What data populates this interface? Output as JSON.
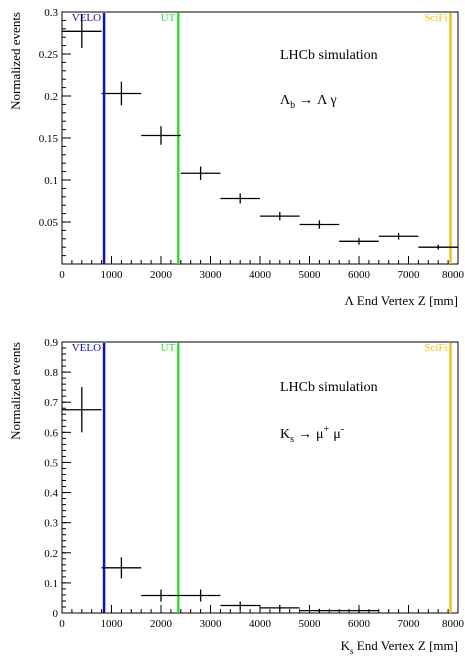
{
  "chart_data": [
    {
      "type": "scatter",
      "title": "",
      "annotation": {
        "text": "LHCb simulation",
        "decay": {
          "mother": "Λ",
          "mother_sub": "b",
          "arrow": "→",
          "products": "Λ γ"
        }
      },
      "xlabel": "Λ End Vertex Z [mm]",
      "ylabel": "Normalized events",
      "xlim": [
        0,
        8000
      ],
      "ylim": [
        0,
        0.3
      ],
      "xticks": [
        0,
        1000,
        2000,
        3000,
        4000,
        5000,
        6000,
        7000,
        8000
      ],
      "xtick_labels": [
        "0",
        "1000",
        "2000",
        "3000",
        "4000",
        "5000",
        "6000",
        "7000",
        "8000"
      ],
      "yticks": [
        0.05,
        0.1,
        0.15,
        0.2,
        0.25,
        0.3
      ],
      "ytick_labels": [
        "0.05",
        "0.1",
        "0.15",
        "0.2",
        "0.25",
        "0.3"
      ],
      "series": [
        {
          "x_low": [
            0,
            800,
            1600,
            2400,
            3200,
            4000,
            4800,
            5600,
            6400,
            7200
          ],
          "x_high": [
            800,
            1600,
            2400,
            3200,
            4000,
            4800,
            5600,
            6400,
            7200,
            8000
          ],
          "y": [
            0.277,
            0.203,
            0.153,
            0.108,
            0.078,
            0.057,
            0.047,
            0.027,
            0.033,
            0.02
          ],
          "y_err": [
            0.02,
            0.014,
            0.011,
            0.008,
            0.006,
            0.005,
            0.005,
            0.004,
            0.004,
            0.003
          ]
        }
      ],
      "detector_lines": [
        {
          "label": "VELO",
          "x": 850,
          "color": "#1010aa"
        },
        {
          "label": "UT",
          "x": 2350,
          "color": "#33dd33"
        },
        {
          "label": "SciFi",
          "x": 7850,
          "color": "#f0c020"
        }
      ]
    },
    {
      "type": "scatter",
      "title": "",
      "annotation": {
        "text": "LHCb simulation",
        "decay": {
          "mother": "K",
          "mother_sub": "s",
          "arrow": "→",
          "p1": "μ",
          "p1_sup": "+",
          "p2": "μ",
          "p2_sup": "-"
        }
      },
      "xlabel_main": "K",
      "xlabel_sub": "s",
      "xlabel_rest": " End Vertex Z [mm]",
      "ylabel": "Normalized events",
      "xlim": [
        0,
        8000
      ],
      "ylim": [
        0,
        0.9
      ],
      "xticks": [
        0,
        1000,
        2000,
        3000,
        4000,
        5000,
        6000,
        7000,
        8000
      ],
      "xtick_labels": [
        "0",
        "1000",
        "2000",
        "3000",
        "4000",
        "5000",
        "6000",
        "7000",
        "8000"
      ],
      "yticks": [
        0,
        0.1,
        0.2,
        0.3,
        0.4,
        0.5,
        0.6,
        0.7,
        0.8,
        0.9
      ],
      "ytick_labels": [
        "0",
        "0.1",
        "0.2",
        "0.3",
        "0.4",
        "0.5",
        "0.6",
        "0.7",
        "0.8",
        "0.9"
      ],
      "series": [
        {
          "x_low": [
            0,
            800,
            1600,
            2400,
            3200,
            4000,
            4800,
            5600
          ],
          "x_high": [
            800,
            1600,
            2400,
            3200,
            4000,
            4800,
            5600,
            6400
          ],
          "y": [
            0.675,
            0.15,
            0.058,
            0.058,
            0.025,
            0.017,
            0.008,
            0.008
          ],
          "y_err": [
            0.075,
            0.035,
            0.02,
            0.02,
            0.013,
            0.01,
            0.006,
            0.006
          ]
        }
      ],
      "detector_lines": [
        {
          "label": "VELO",
          "x": 850,
          "color": "#1010aa"
        },
        {
          "label": "UT",
          "x": 2350,
          "color": "#33dd33"
        },
        {
          "label": "SciFi",
          "x": 7850,
          "color": "#f0c020"
        }
      ]
    }
  ]
}
